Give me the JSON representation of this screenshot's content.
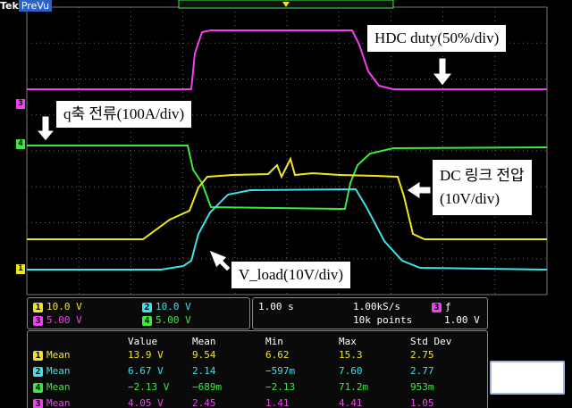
{
  "header": {
    "brand": "Tek",
    "mode": "PreVu"
  },
  "channel_markers": [
    "3",
    "4",
    "1"
  ],
  "annotations": [
    "HDC duty(50%/div)",
    "q축 전류(100A/div)",
    [
      "DC 링크 전압",
      "(10V/div)"
    ],
    "V_load(10V/div)"
  ],
  "channel_scales": [
    {
      "channel": "1",
      "scale": "10.0 V"
    },
    {
      "channel": "2",
      "scale": "10.0 V"
    },
    {
      "channel": "3",
      "scale": "5.00 V"
    },
    {
      "channel": "4",
      "scale": "5.00 V"
    }
  ],
  "timebase": {
    "scale": "1.00 s",
    "sample_rate": "1.00kS/s",
    "record": "10k points",
    "trigger_channel": "3",
    "trigger_slope": "ƒ",
    "trigger_level": "1.00 V"
  },
  "measurements": {
    "columns": [
      "Value",
      "Mean",
      "Min",
      "Max",
      "Std Dev"
    ],
    "rows": [
      {
        "channel": "1",
        "label": "Mean",
        "cells": [
          "13.9 V",
          "9.54",
          "6.62",
          "15.3",
          "2.75"
        ]
      },
      {
        "channel": "2",
        "label": "Mean",
        "cells": [
          "6.67 V",
          "2.14",
          "−597m",
          "7.60",
          "2.77"
        ]
      },
      {
        "channel": "4",
        "label": "Mean",
        "cells": [
          "−2.13 V",
          "−689m",
          "−2.13",
          "71.2m",
          "953m"
        ]
      },
      {
        "channel": "3",
        "label": "Mean",
        "cells": [
          "4.05 V",
          "2.45",
          "1.41",
          "4.41",
          "1.05"
        ]
      }
    ]
  }
}
